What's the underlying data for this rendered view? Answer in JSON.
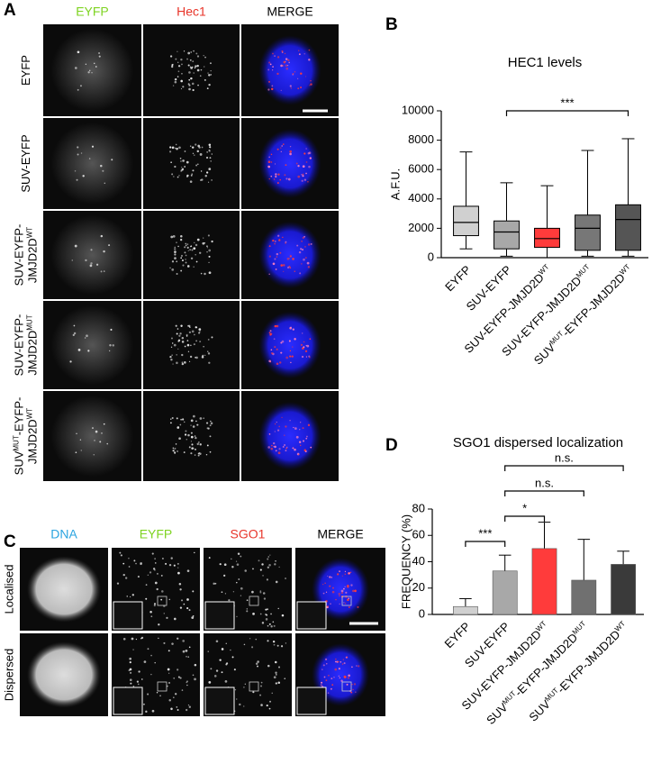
{
  "panel_labels": [
    "A",
    "B",
    "C",
    "D"
  ],
  "panel_a": {
    "columns": [
      "EYFP",
      "Hec1",
      "MERGE"
    ],
    "rows": [
      [
        [
          "EYFP"
        ]
      ],
      [
        [
          "SUV-EYFP"
        ]
      ],
      [
        [
          "SUV-EYFP-"
        ],
        [
          "JMJD2D",
          "WT"
        ]
      ],
      [
        [
          "SUV-EYFP-"
        ],
        [
          "JMJD2D",
          "MUT"
        ]
      ],
      [
        [
          "SUV",
          "MUT",
          "-EYFP-"
        ],
        [
          "JMJD2D",
          "WT"
        ]
      ]
    ]
  },
  "panel_c": {
    "columns": [
      "DNA",
      "EYFP",
      "SGO1",
      "MERGE"
    ],
    "rows": [
      "Localised",
      "Dispersed"
    ]
  },
  "chart_data": [
    {
      "type": "box",
      "title": "HEC1 levels",
      "y_label": "A.F.U.",
      "categories": [
        [
          "EYFP"
        ],
        [
          "SUV-EYFP"
        ],
        [
          "SUV-EYFP-JMJD2D",
          "WT"
        ],
        [
          "SUV-EYFP-JMJD2D",
          "MUT"
        ],
        [
          "SUV",
          "MUT",
          "-EYFP-JMJD2D",
          "WT"
        ]
      ],
      "boxes": [
        {
          "min": 600,
          "q1": 1500,
          "median": 2400,
          "q3": 3500,
          "max": 7200,
          "color": "#d0d0d0"
        },
        {
          "min": 100,
          "q1": 600,
          "median": 1750,
          "q3": 2500,
          "max": 5100,
          "color": "#a8a8a8"
        },
        {
          "min": 0,
          "q1": 700,
          "median": 1300,
          "q3": 2000,
          "max": 4900,
          "color": "#ff3b3b"
        },
        {
          "min": 100,
          "q1": 500,
          "median": 2000,
          "q3": 2900,
          "max": 7300,
          "color": "#777777"
        },
        {
          "min": 100,
          "q1": 500,
          "median": 2600,
          "q3": 3600,
          "max": 8100,
          "color": "#555555"
        }
      ],
      "ylim": [
        0,
        10000
      ],
      "yticks": [
        0,
        2000,
        4000,
        6000,
        8000,
        10000
      ],
      "significance": [
        {
          "label": "***",
          "from": 1,
          "to": 4
        }
      ]
    },
    {
      "type": "bar",
      "title": "SGO1 dispersed localization",
      "y_label": "FREQUENCY (%)",
      "categories": [
        [
          "EYFP"
        ],
        [
          "SUV-EYFP"
        ],
        [
          "SUV-EYFP-JMJD2D",
          "WT"
        ],
        [
          "SUV",
          "MUT",
          "-EYFP-JMJD2D",
          "MUT"
        ],
        [
          "SUV",
          "MUT",
          "-EYFP-JMJD2D",
          "WT"
        ]
      ],
      "values": [
        6,
        33,
        50,
        26,
        38
      ],
      "errors": [
        6,
        12,
        20,
        31,
        10
      ],
      "colors": [
        "#d0d0d0",
        "#a8a8a8",
        "#ff3b3b",
        "#707070",
        "#3a3a3a"
      ],
      "ylim": [
        0,
        80
      ],
      "yticks": [
        0,
        20,
        40,
        60,
        80
      ],
      "significance": [
        {
          "label": "***",
          "from": 0,
          "to": 1
        },
        {
          "label": "*",
          "from": 1,
          "to": 2
        },
        {
          "label": "n.s.",
          "from": 1,
          "to": 3
        },
        {
          "label": "n.s.",
          "from": 1,
          "to": 4
        }
      ]
    }
  ]
}
